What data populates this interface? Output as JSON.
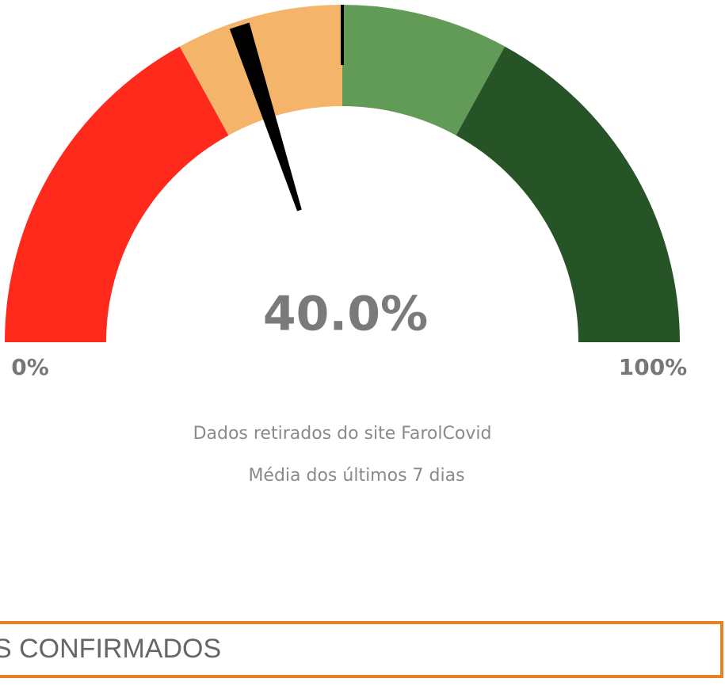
{
  "chart_data": {
    "type": "gauge",
    "values": [
      40
    ],
    "value_labels": [
      "40.0%"
    ],
    "xlim": [
      0,
      100
    ],
    "xticks": [
      {
        "value": 0,
        "label": "0%"
      },
      {
        "value": 100,
        "label": "100%"
      }
    ],
    "bands": [
      {
        "value": 34,
        "color": "#ff2a1b"
      },
      {
        "value": 16,
        "color": "#f4b469"
      },
      {
        "value": 16,
        "color": "#629a57"
      },
      {
        "value": 34,
        "color": "#265426"
      }
    ],
    "needle_color": "#000000",
    "notes": [
      "Dados retirados do site FarolCovid",
      "Média dos últimos 7 dias"
    ]
  },
  "section": {
    "title": "S CONFIRMADOS"
  }
}
